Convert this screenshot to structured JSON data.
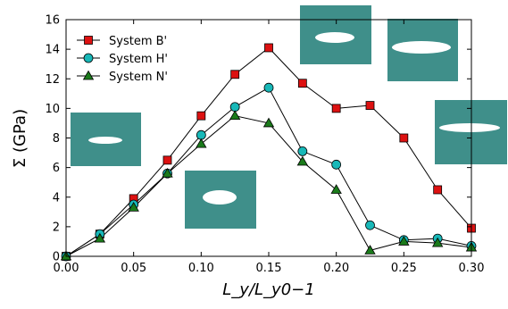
{
  "chart_data": {
    "type": "line",
    "xlabel": "L_y/L_y0−1",
    "ylabel": "Σ (GPa)",
    "xlim": [
      0.0,
      0.3
    ],
    "ylim": [
      0,
      16
    ],
    "x_ticks": [
      "0.00",
      "0.05",
      "0.10",
      "0.15",
      "0.20",
      "0.25",
      "0.30"
    ],
    "y_ticks": [
      "0",
      "2",
      "4",
      "6",
      "8",
      "10",
      "12",
      "14",
      "16"
    ],
    "grid": false,
    "legend_position": "top-left",
    "x": [
      0.0,
      0.025,
      0.05,
      0.075,
      0.1,
      0.125,
      0.15,
      0.175,
      0.2,
      0.225,
      0.25,
      0.275,
      0.3
    ],
    "series": [
      {
        "name": "System B'",
        "marker": "square",
        "color": "#dd1111",
        "values": [
          0.0,
          1.5,
          3.9,
          6.5,
          9.5,
          12.3,
          14.1,
          11.7,
          10.0,
          10.2,
          8.0,
          4.5,
          1.9
        ]
      },
      {
        "name": "System H'",
        "marker": "circle",
        "color": "#18b8b8",
        "values": [
          0.0,
          1.5,
          3.5,
          5.6,
          8.2,
          10.1,
          11.4,
          7.1,
          6.2,
          2.1,
          1.1,
          1.2,
          0.7
        ]
      },
      {
        "name": "System N'",
        "marker": "triangle",
        "color": "#1a7a1a",
        "values": [
          0.0,
          1.2,
          3.3,
          5.6,
          7.6,
          9.5,
          9.0,
          6.4,
          4.5,
          0.4,
          1.0,
          0.9,
          0.6
        ]
      }
    ]
  }
}
